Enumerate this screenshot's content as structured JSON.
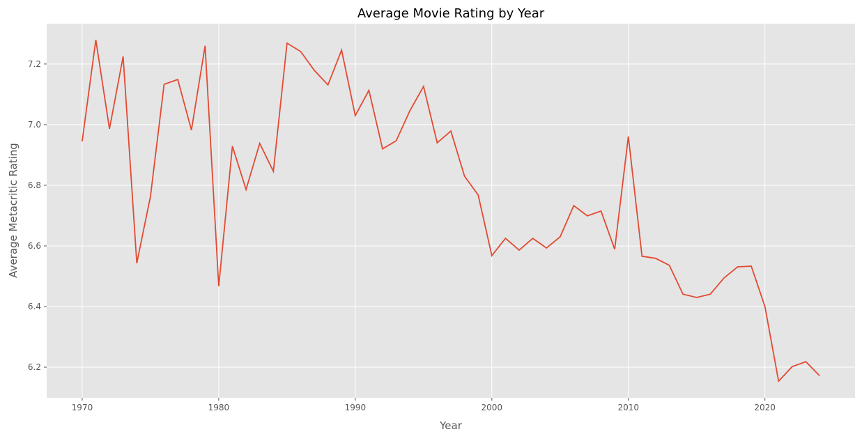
{
  "chart_data": {
    "type": "line",
    "title": "Average Movie Rating by Year",
    "xlabel": "Year",
    "ylabel": "Average Metacritic Rating",
    "xlim": [
      1967.4,
      2026.6
    ],
    "ylim": [
      6.099,
      7.333
    ],
    "xticks": [
      1970,
      1980,
      1990,
      2000,
      2010,
      2020
    ],
    "yticks": [
      6.2,
      6.4,
      6.6,
      6.8,
      7.0,
      7.2
    ],
    "ytick_labels": [
      "6.2",
      "6.4",
      "6.6",
      "6.8",
      "7.0",
      "7.2"
    ],
    "grid": true,
    "style": "ggplot",
    "colors": {
      "line": "#e24a33",
      "plot_bg": "#e5e5e5",
      "grid": "#ffffff"
    },
    "series": [
      {
        "x": [
          1970,
          1971,
          1972,
          1973,
          1974,
          1975,
          1976,
          1977,
          1978,
          1979,
          1980,
          1981,
          1982,
          1983,
          1984,
          1985,
          1986,
          1987,
          1988,
          1989,
          1990,
          1991,
          1992,
          1993,
          1994,
          1995,
          1996,
          1997,
          1998,
          1999,
          2000,
          2001,
          2002,
          2003,
          2004,
          2005,
          2006,
          2007,
          2008,
          2009,
          2010,
          2011,
          2012,
          2013,
          2014,
          2015,
          2016,
          2017,
          2018,
          2019,
          2020,
          2021,
          2022,
          2023,
          2024
        ],
        "values": [
          6.945,
          7.28,
          6.986,
          7.225,
          6.543,
          6.763,
          7.133,
          7.149,
          6.982,
          7.26,
          6.467,
          6.929,
          6.786,
          6.938,
          6.846,
          7.269,
          7.241,
          7.179,
          7.131,
          7.246,
          7.03,
          7.113,
          6.92,
          6.947,
          7.046,
          7.126,
          6.94,
          6.979,
          6.83,
          6.768,
          6.568,
          6.625,
          6.586,
          6.625,
          6.593,
          6.63,
          6.733,
          6.699,
          6.715,
          6.589,
          6.961,
          6.566,
          6.559,
          6.536,
          6.441,
          6.43,
          6.441,
          6.494,
          6.531,
          6.533,
          6.4,
          6.154,
          6.202,
          6.218,
          6.172
        ]
      }
    ]
  }
}
